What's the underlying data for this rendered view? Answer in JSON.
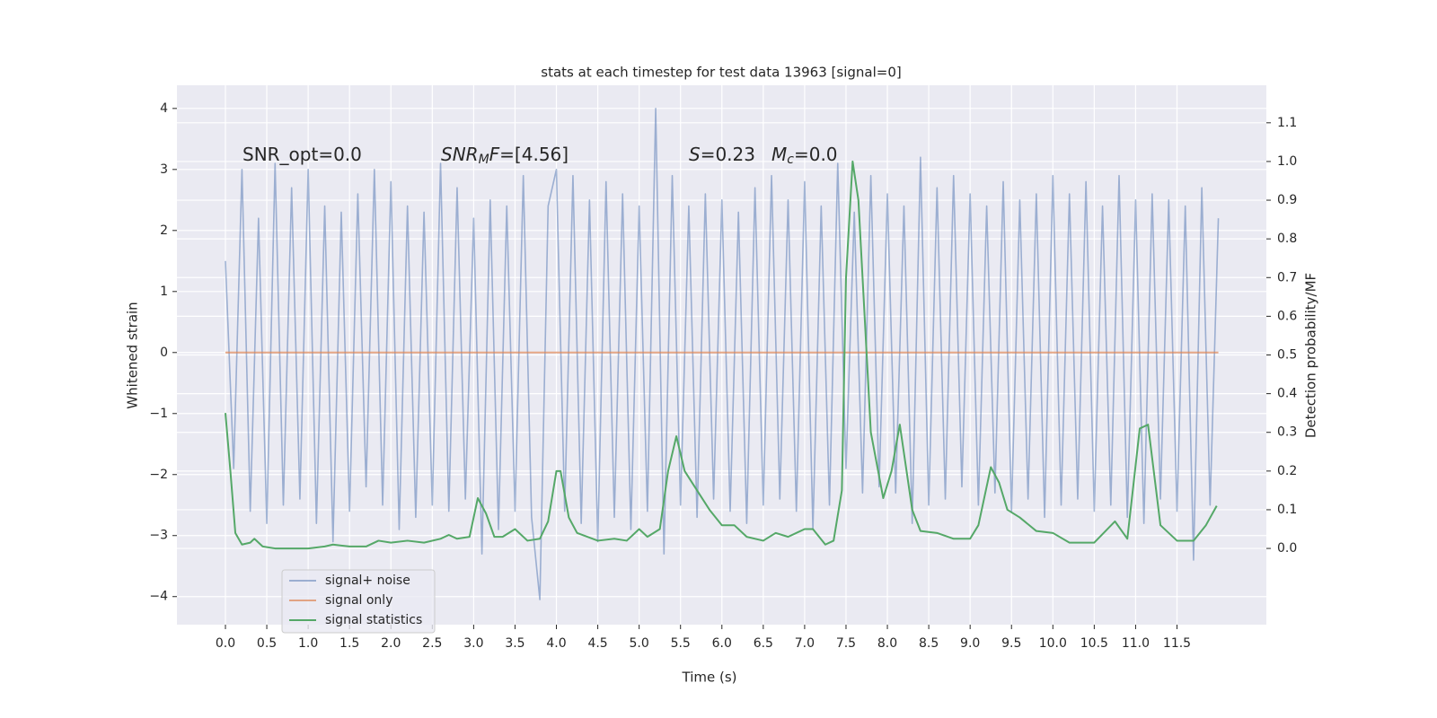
{
  "chart_data": {
    "type": "line",
    "title": "stats at each timestep for test data 13963 [signal=0]",
    "xlabel": "Time (s)",
    "ylabel": "Whitened strain",
    "y2label": "Detection probability/MF",
    "background": "#eaeaf2",
    "grid": true,
    "legend": "lower left",
    "xlim": [
      -0.586,
      12.58
    ],
    "ylim": [
      -4.46,
      4.38
    ],
    "y2lim": [
      -0.197,
      1.197
    ],
    "xticks": [
      {
        "value": 0,
        "label": "0.0"
      },
      0.5,
      {
        "value": 1,
        "label": "1.0"
      },
      1.5,
      {
        "value": 2,
        "label": "2.0"
      },
      2.5,
      {
        "value": 3,
        "label": "3.0"
      },
      3.5,
      {
        "value": 4,
        "label": "4.0"
      },
      4.5,
      {
        "value": 5,
        "label": "5.0"
      },
      5.5,
      {
        "value": 6,
        "label": "6.0"
      },
      6.5,
      {
        "value": 7,
        "label": "7.0"
      },
      7.5,
      {
        "value": 8,
        "label": "8.0"
      },
      8.5,
      {
        "value": 9,
        "label": "9.0"
      },
      9.5,
      {
        "value": 10,
        "label": "10.0"
      },
      10.5,
      {
        "value": 11,
        "label": "11.0"
      },
      11.5
    ],
    "yticks": [
      {
        "value": -4,
        "label": "−4"
      },
      {
        "value": -3,
        "label": "−3"
      },
      {
        "value": -2,
        "label": "−2"
      },
      {
        "value": -1,
        "label": "−1"
      },
      0,
      1,
      2,
      3,
      4
    ],
    "y2ticks": [
      {
        "value": 0,
        "label": "0.0"
      },
      0.1,
      0.2,
      0.3,
      0.4,
      0.5,
      0.6,
      0.7,
      0.8,
      0.9,
      {
        "value": 1,
        "label": "1.0"
      },
      1.1
    ],
    "annotations": [
      {
        "parts": [
          {
            "text": "SNR_opt=0.0"
          }
        ]
      },
      {
        "parts": [
          {
            "text": "SNR",
            "style": "italic"
          },
          {
            "text": "M",
            "style": "sub"
          },
          {
            "text": "F",
            "style": "italic"
          },
          {
            "text": "=[4.56]"
          }
        ]
      },
      {
        "parts": [
          {
            "text": "S",
            "style": "italic"
          },
          {
            "text": "=0.23"
          }
        ]
      },
      {
        "parts": [
          {
            "text": "M",
            "style": "italic"
          },
          {
            "text": "c",
            "style": "sub"
          },
          {
            "text": "=0.0"
          }
        ]
      }
    ],
    "series": [
      {
        "name": "signal+ noise",
        "color": "#4c72b0",
        "alpha": 0.5,
        "x": [
          0,
          0.1,
          0.2,
          0.3,
          0.4,
          0.5,
          0.6,
          0.7,
          0.8,
          0.9,
          1,
          1.1,
          1.2,
          1.3,
          1.4,
          1.5,
          1.6,
          1.7,
          1.8,
          1.9,
          2,
          2.1,
          2.2,
          2.3,
          2.4,
          2.5,
          2.6,
          2.7,
          2.8,
          2.9,
          3,
          3.1,
          3.2,
          3.3,
          3.4,
          3.5,
          3.6,
          3.7,
          3.8,
          3.9,
          4,
          4.1,
          4.2,
          4.3,
          4.4,
          4.5,
          4.6,
          4.7,
          4.8,
          4.9,
          5,
          5.1,
          5.2,
          5.3,
          5.4,
          5.5,
          5.6,
          5.7,
          5.8,
          5.9,
          6,
          6.1,
          6.2,
          6.3,
          6.4,
          6.5,
          6.6,
          6.7,
          6.8,
          6.9,
          7,
          7.1,
          7.2,
          7.3,
          7.4,
          7.5,
          7.6,
          7.7,
          7.8,
          7.9,
          8,
          8.1,
          8.2,
          8.3,
          8.4,
          8.5,
          8.6,
          8.7,
          8.8,
          8.9,
          9,
          9.1,
          9.2,
          9.3,
          9.4,
          9.5,
          9.6,
          9.7,
          9.8,
          9.9,
          10,
          10.1,
          10.2,
          10.3,
          10.4,
          10.5,
          10.6,
          10.7,
          10.8,
          10.9,
          11,
          11.1,
          11.2,
          11.3,
          11.4,
          11.5,
          11.6,
          11.7,
          11.8,
          11.9,
          12
        ],
        "values": [
          1.5,
          -1.9,
          3.0,
          -2.6,
          2.2,
          -2.8,
          3.1,
          -2.5,
          2.7,
          -2.4,
          3.0,
          -2.8,
          2.4,
          -3.1,
          2.3,
          -2.6,
          2.6,
          -2.2,
          3.0,
          -2.5,
          2.8,
          -2.9,
          2.4,
          -2.7,
          2.3,
          -2.5,
          3.1,
          -2.6,
          2.7,
          -2.4,
          2.2,
          -3.3,
          2.5,
          -2.9,
          2.4,
          -2.6,
          2.9,
          -2.7,
          -4.05,
          2.4,
          3.0,
          -2.6,
          2.9,
          -2.8,
          2.5,
          -3.1,
          2.8,
          -2.7,
          2.6,
          -2.9,
          2.4,
          -2.6,
          4.0,
          -3.3,
          2.9,
          -2.5,
          2.4,
          -2.7,
          2.6,
          -2.4,
          2.5,
          -2.6,
          2.3,
          -2.8,
          2.7,
          -2.5,
          2.9,
          -2.4,
          2.5,
          -2.6,
          2.8,
          -2.9,
          2.4,
          -2.5,
          3.1,
          -1.9,
          2.3,
          -2.3,
          2.9,
          -2.2,
          2.6,
          -2.3,
          2.4,
          -2.8,
          3.2,
          -2.5,
          2.7,
          -2.4,
          2.9,
          -2.2,
          2.6,
          -2.5,
          2.4,
          -2.3,
          2.8,
          -2.6,
          2.5,
          -2.4,
          2.6,
          -2.7,
          2.9,
          -2.5,
          2.6,
          -2.4,
          2.8,
          -2.6,
          2.4,
          -2.5,
          2.9,
          -2.7,
          2.5,
          -2.8,
          2.6,
          -2.4,
          2.5,
          -2.6,
          2.4,
          -3.4,
          2.7,
          -2.5,
          2.2
        ]
      },
      {
        "name": "signal only",
        "color": "#dd8452",
        "alpha": 0.7,
        "x": [
          0,
          12
        ],
        "values": [
          0,
          0
        ]
      },
      {
        "name": "signal statistics",
        "color": "#55a868",
        "alpha": 1,
        "axis": "y2",
        "x": [
          0,
          0.06,
          0.12,
          0.2,
          0.3,
          0.35,
          0.45,
          0.6,
          0.8,
          1.0,
          1.2,
          1.3,
          1.5,
          1.7,
          1.85,
          2.0,
          2.2,
          2.4,
          2.6,
          2.7,
          2.8,
          2.95,
          3.05,
          3.15,
          3.25,
          3.35,
          3.5,
          3.65,
          3.8,
          3.9,
          4.0,
          4.05,
          4.15,
          4.25,
          4.5,
          4.7,
          4.85,
          5.0,
          5.1,
          5.25,
          5.35,
          5.45,
          5.55,
          5.7,
          5.85,
          6.0,
          6.15,
          6.3,
          6.5,
          6.65,
          6.8,
          7.0,
          7.1,
          7.25,
          7.35,
          7.45,
          7.5,
          7.58,
          7.65,
          7.8,
          7.95,
          8.05,
          8.15,
          8.3,
          8.4,
          8.6,
          8.8,
          9.0,
          9.1,
          9.25,
          9.35,
          9.45,
          9.6,
          9.8,
          10.0,
          10.2,
          10.5,
          10.75,
          10.9,
          11.05,
          11.15,
          11.3,
          11.5,
          11.7,
          11.85,
          11.98
        ],
        "values": [
          0.35,
          0.2,
          0.04,
          0.01,
          0.015,
          0.025,
          0.005,
          0.0,
          0.0,
          0.0,
          0.005,
          0.01,
          0.005,
          0.005,
          0.02,
          0.015,
          0.02,
          0.015,
          0.025,
          0.035,
          0.025,
          0.03,
          0.13,
          0.09,
          0.03,
          0.03,
          0.05,
          0.02,
          0.025,
          0.07,
          0.2,
          0.2,
          0.08,
          0.04,
          0.02,
          0.025,
          0.02,
          0.05,
          0.03,
          0.05,
          0.2,
          0.29,
          0.2,
          0.15,
          0.1,
          0.06,
          0.06,
          0.03,
          0.02,
          0.04,
          0.03,
          0.05,
          0.05,
          0.01,
          0.02,
          0.15,
          0.7,
          1.0,
          0.9,
          0.3,
          0.13,
          0.2,
          0.32,
          0.1,
          0.045,
          0.04,
          0.025,
          0.025,
          0.06,
          0.21,
          0.17,
          0.1,
          0.08,
          0.045,
          0.04,
          0.015,
          0.015,
          0.07,
          0.025,
          0.31,
          0.32,
          0.06,
          0.02,
          0.02,
          0.06,
          0.11
        ]
      }
    ]
  }
}
